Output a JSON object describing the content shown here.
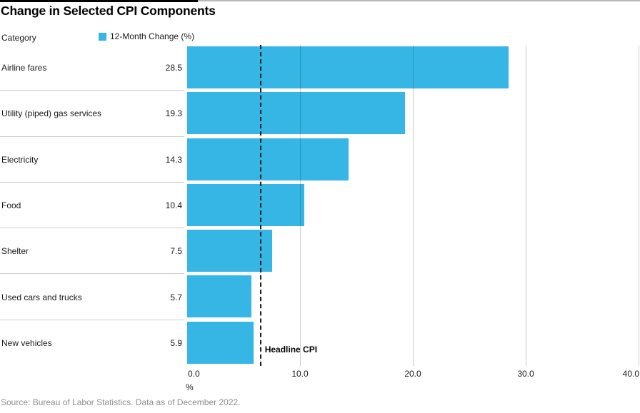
{
  "page": {
    "title": "Change in Selected CPI Components",
    "source": "Source: Bureau of Labor Statistics. Data as of December 2022."
  },
  "header": {
    "category_label": "Category",
    "legend": {
      "label": "12-Month Change (%)",
      "swatch_color": "#35B6E4"
    }
  },
  "chart_data": {
    "type": "bar",
    "orientation": "horizontal",
    "title": "Change in Selected CPI Components",
    "series_name": "12-Month Change (%)",
    "categories": [
      "Airline fares",
      "Utility (piped) gas services",
      "Electricity",
      "Food",
      "Shelter",
      "Used cars and trucks",
      "New vehicles"
    ],
    "values": [
      28.5,
      19.3,
      14.3,
      10.4,
      7.5,
      5.7,
      5.9
    ],
    "bar_color": "#35B6E4",
    "xlabel": "%",
    "xlim": [
      0,
      40
    ],
    "x_ticks": [
      0,
      10,
      20,
      30,
      40
    ],
    "x_tick_labels": [
      "0.0",
      "10.0",
      "20.0",
      "30.0",
      "40.0"
    ],
    "grid": "vertical",
    "gridline_color": "#cccccc",
    "reference_line": {
      "value": 6.5,
      "label": "Headline CPI",
      "style": "dashed",
      "color": "#1d1d1d"
    }
  }
}
